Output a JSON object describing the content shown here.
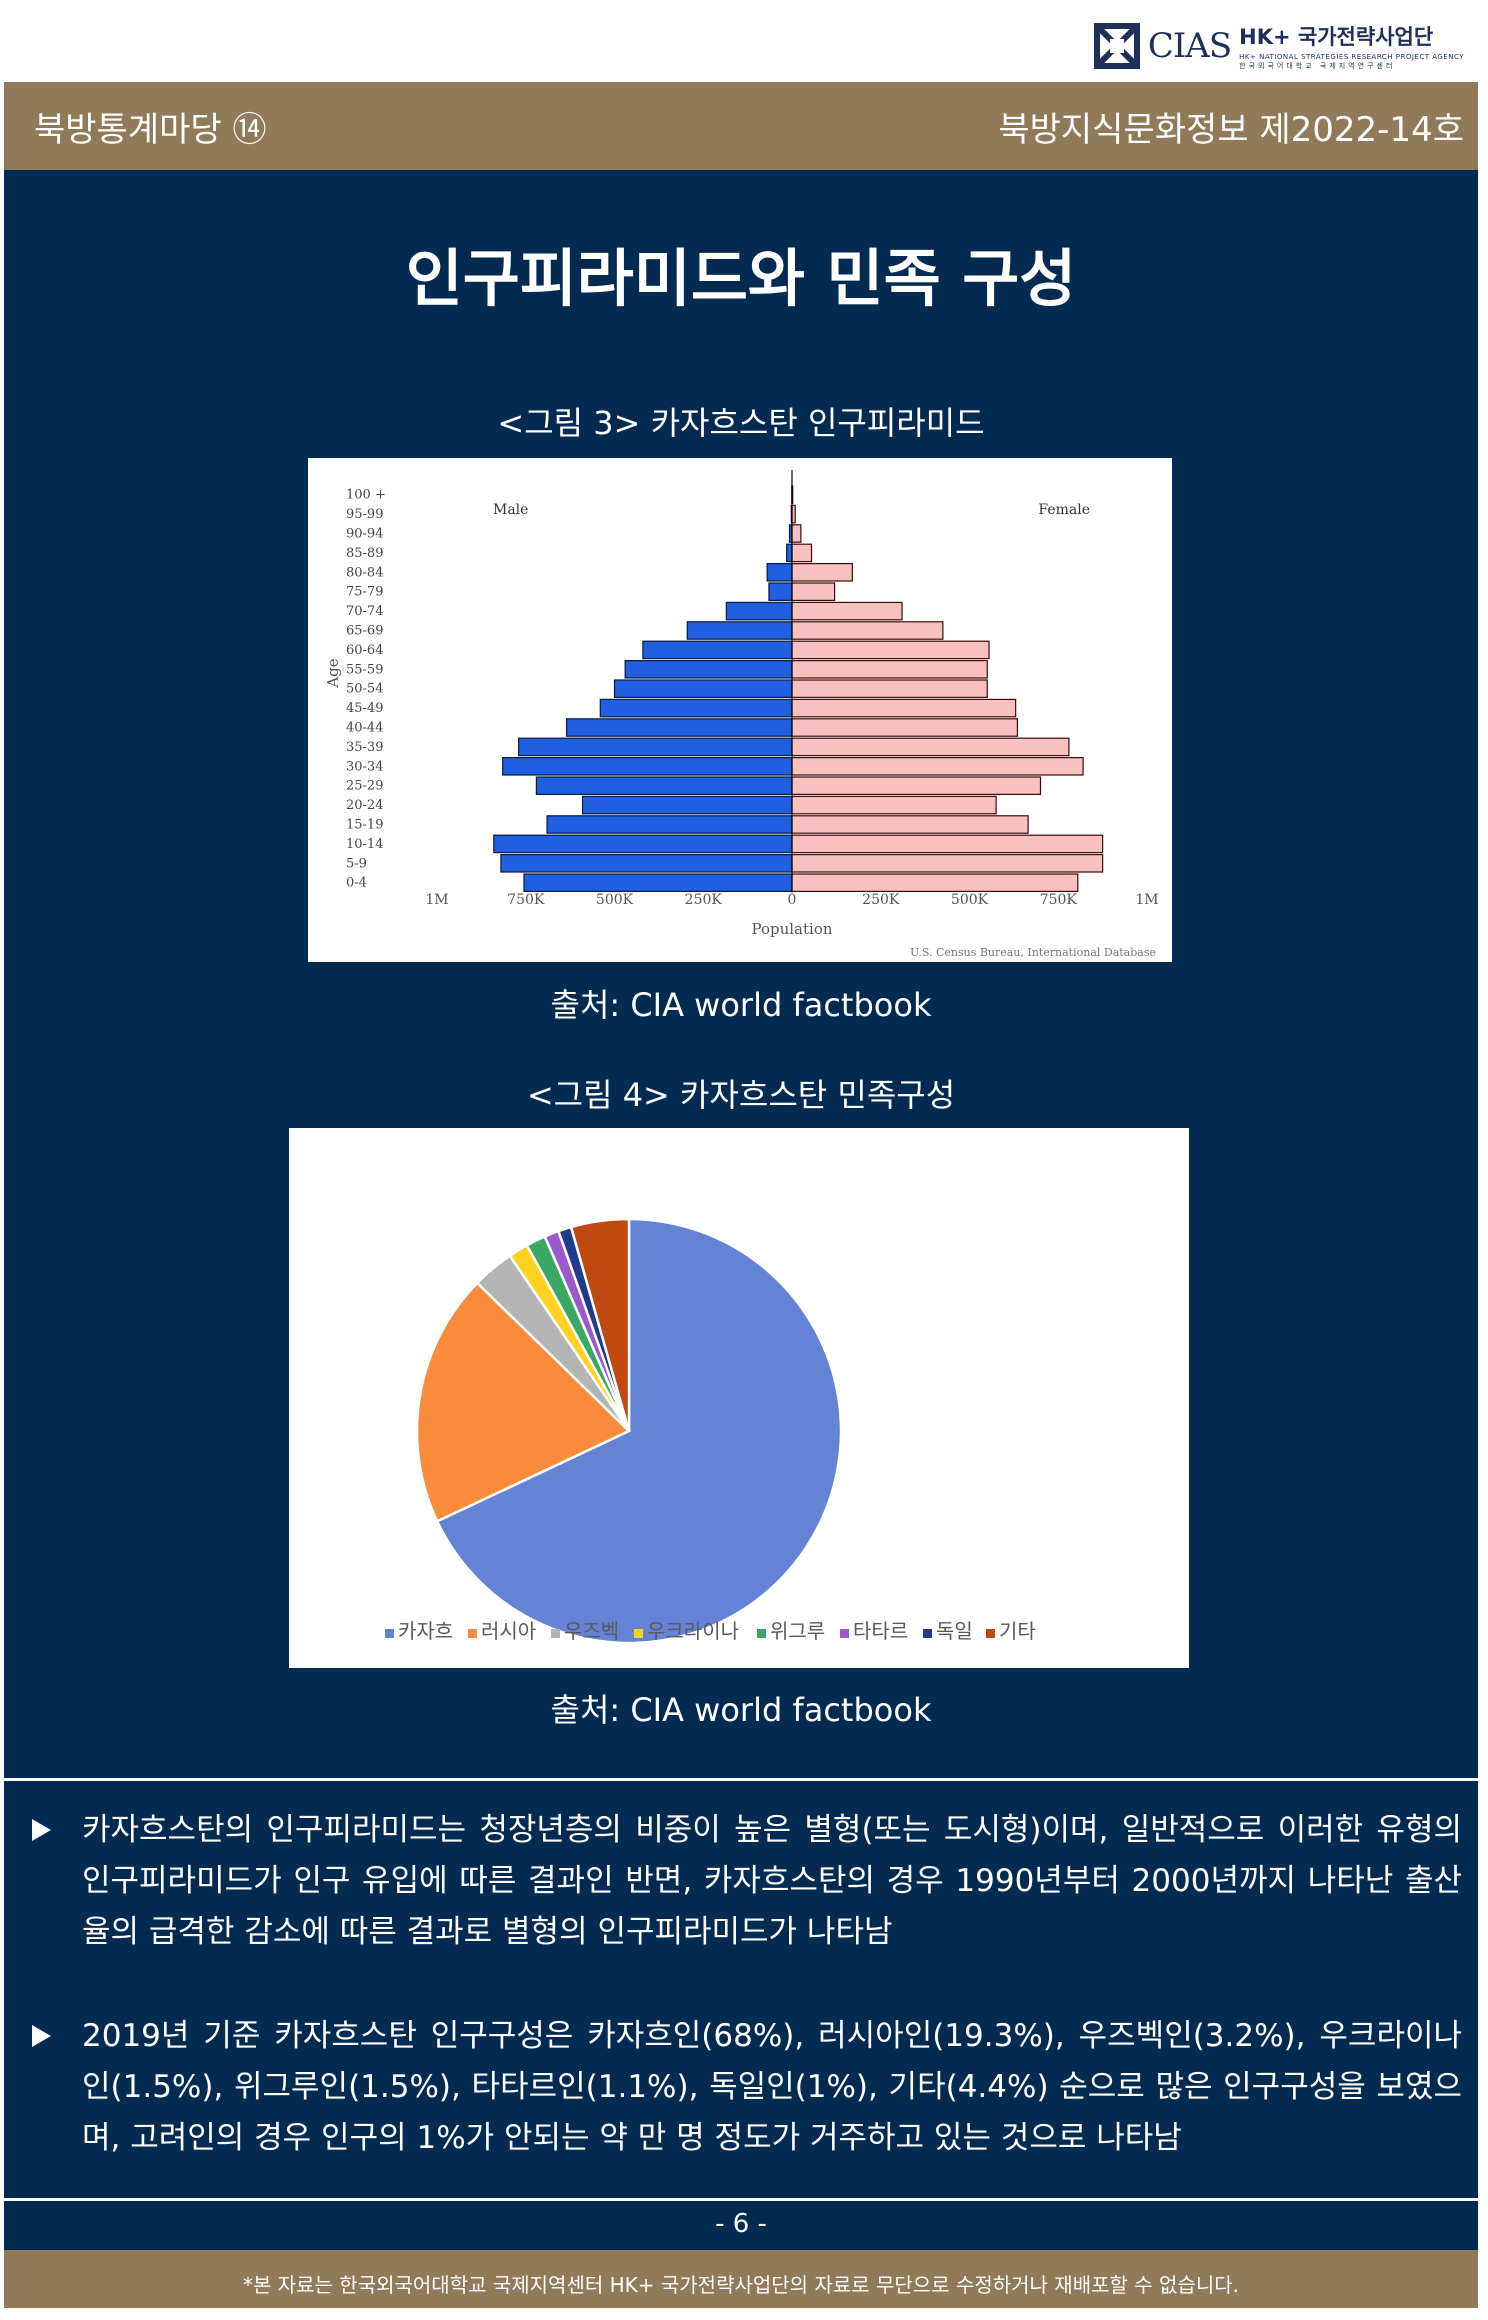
{
  "logo": {
    "cias": "CIAS",
    "hk": "HK+ 국가전략사업단",
    "sub": "HK+ NATIONAL STRATEGIES RESEARCH PROJECT AGENCY",
    "sub2": "한국외국어대학교 국제지역연구센터",
    "mark_color": "#1f2f5a"
  },
  "header": {
    "left": "북방통계마당 ⑭",
    "right": "북방지식문화정보 제2022-14호"
  },
  "title": "인구피라미드와 민족 구성",
  "figure3": {
    "caption": "<그림 3>  카자흐스탄 인구피라미드",
    "source": "출처: CIA world factbook",
    "chart_data": {
      "type": "bar",
      "orientation": "horizontal-pyramid",
      "categories": [
        "0-4",
        "5-9",
        "10-14",
        "15-19",
        "20-24",
        "25-29",
        "30-34",
        "35-39",
        "40-44",
        "45-49",
        "50-54",
        "55-59",
        "60-64",
        "65-69",
        "70-74",
        "75-79",
        "80-84",
        "85-89",
        "90-94",
        "95-99",
        "100 +"
      ],
      "series": [
        {
          "name": "Male",
          "color": "#1f5fe0",
          "values": [
            755000,
            820000,
            840000,
            690000,
            590000,
            720000,
            815000,
            770000,
            635000,
            540000,
            500000,
            470000,
            420000,
            295000,
            185000,
            65000,
            70000,
            15000,
            7000,
            2000,
            500
          ]
        },
        {
          "name": "Female",
          "color": "#f9c0c0",
          "values": [
            805000,
            875000,
            875000,
            665000,
            575000,
            700000,
            820000,
            780000,
            635000,
            630000,
            550000,
            550000,
            555000,
            425000,
            310000,
            120000,
            170000,
            55000,
            25000,
            9000,
            2000
          ]
        }
      ],
      "xticks": [
        "1M",
        "750K",
        "500K",
        "250K",
        "0",
        "250K",
        "500K",
        "750K",
        "1M"
      ],
      "xlabel": "Population",
      "ylabel": "Age",
      "xlim": [
        -1000000,
        1000000
      ],
      "legend_left": "Male",
      "legend_right": "Female",
      "note": "U.S. Census Bureau, International Database"
    }
  },
  "figure4": {
    "caption": "<그림 4> 카자흐스탄 민족구성",
    "source": "출처: CIA world factbook",
    "chart_data": {
      "type": "pie",
      "categories": [
        "카자흐",
        "러시아",
        "우즈벡",
        "우크라이나",
        "위그루",
        "타타르",
        "독일",
        "기타"
      ],
      "values": [
        68,
        19.3,
        3.2,
        1.5,
        1.5,
        1.1,
        1,
        4.4
      ],
      "colors": [
        "#6483d5",
        "#f98b3b",
        "#b4b4b4",
        "#ffd21f",
        "#3aa864",
        "#9b59c9",
        "#1f3c8c",
        "#c0490f"
      ],
      "legend": "bottom"
    }
  },
  "bullets": [
    "카자흐스탄의 인구피라미드는 청장년층의 비중이 높은 별형(또는 도시형)이며, 일반적으로 이러한 유형의 인구피라미드가 인구 유입에 따른 결과인 반면, 카자흐스탄의 경우 1990년부터 2000년까지 나타난 출산율의 급격한 감소에 따른 결과로 별형의 인구피라미드가 나타남",
    "2019년 기준 카자흐스탄 인구구성은 카자흐인(68%), 러시아인(19.3%), 우즈벡인(3.2%), 우크라이나인(1.5%), 위그루인(1.5%), 타타르인(1.1%), 독일인(1%), 기타(4.4%) 순으로 많은 인구구성을 보였으며, 고려인의 경우 인구의 1%가 안되는 약 만 명 정도가 거주하고 있는 것으로 나타남"
  ],
  "page_number": "- 6 -",
  "footer": "*본 자료는 한국외국어대학교 국제지역센터 HK+ 국가전략사업단의 자료로 무단으로 수정하거나 재배포할 수 없습니다."
}
